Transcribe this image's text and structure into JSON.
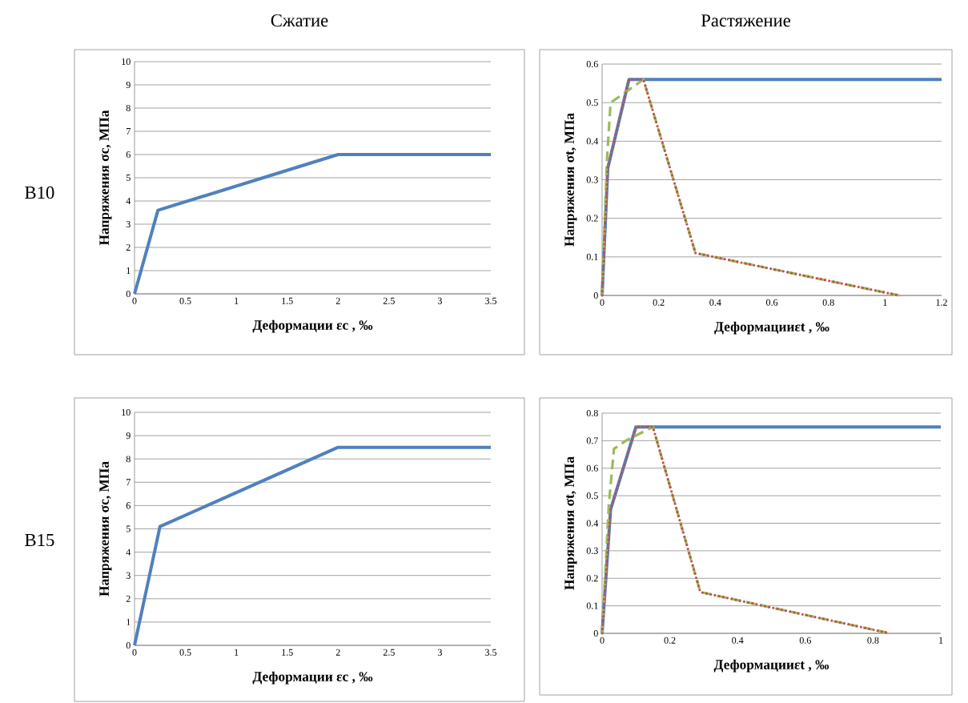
{
  "chart_data": [
    {
      "type": "line",
      "title": "Сжатие",
      "annotations": [
        "B10"
      ],
      "xlabel": "Деформации  εc , ‰",
      "ylabel": "Напряжения  σc, МПа",
      "xlim": [
        0,
        3.5
      ],
      "ylim": [
        0,
        10
      ],
      "xticks": [
        0,
        0.5,
        1,
        1.5,
        2,
        2.5,
        3,
        3.5
      ],
      "yticks": [
        0,
        1,
        2,
        3,
        4,
        5,
        6,
        7,
        8,
        9,
        10
      ],
      "grid": "y",
      "marker": "none",
      "series": [
        {
          "color": "#4f81bd",
          "line_style": "solid",
          "x": [
            0,
            0.23,
            2,
            3.5
          ],
          "values": [
            0,
            3.6,
            6,
            6
          ]
        }
      ]
    },
    {
      "type": "line",
      "title": "Растяжение",
      "xlabel": "Деформацииεt , ‰",
      "ylabel": "Напряжения  σt, МПа",
      "xlim": [
        0,
        1.2
      ],
      "ylim": [
        0,
        0.6
      ],
      "xticks": [
        0,
        0.2,
        0.4,
        0.6,
        0.8,
        1,
        1.2
      ],
      "yticks": [
        0,
        0.1,
        0.2,
        0.3,
        0.4,
        0.5,
        0.6
      ],
      "grid": "y",
      "marker": "none",
      "series": [
        {
          "color": "#4f81bd",
          "line_style": "solid",
          "x": [
            0,
            0.02,
            0.095,
            1.2
          ],
          "values": [
            0,
            0.33,
            0.56,
            0.56
          ]
        },
        {
          "color": "#9bbb59",
          "line_style": "dashed",
          "x": [
            0,
            0.017,
            0.03,
            0.05,
            0.146,
            0.33,
            1.05
          ],
          "values": [
            0,
            0.35,
            0.5,
            0.51,
            0.56,
            0.11,
            0
          ]
        },
        {
          "color": "#c0504d",
          "line_style": "dotted",
          "x": [
            0,
            0.02,
            0.095,
            0.146,
            0.33,
            1.05
          ],
          "values": [
            0,
            0.33,
            0.56,
            0.56,
            0.11,
            0
          ]
        }
      ]
    },
    {
      "type": "line",
      "annotations": [
        "B15"
      ],
      "xlabel": "Деформации  εc , ‰",
      "ylabel": "Напряжения  σc, МПа",
      "xlim": [
        0,
        3.5
      ],
      "ylim": [
        0,
        10
      ],
      "xticks": [
        0,
        0.5,
        1,
        1.5,
        2,
        2.5,
        3,
        3.5
      ],
      "yticks": [
        0,
        1,
        2,
        3,
        4,
        5,
        6,
        7,
        8,
        9,
        10
      ],
      "grid": "y",
      "marker": "none",
      "series": [
        {
          "color": "#4f81bd",
          "line_style": "solid",
          "x": [
            0,
            0.25,
            2,
            3.5
          ],
          "values": [
            0,
            5.1,
            8.5,
            8.5
          ]
        }
      ]
    },
    {
      "type": "line",
      "xlabel": "Деформацииεt , ‰",
      "ylabel": "Напряжения  σt, МПа",
      "xlim": [
        0,
        1
      ],
      "ylim": [
        0,
        0.8
      ],
      "xticks": [
        0,
        0.2,
        0.4,
        0.6,
        0.8,
        1
      ],
      "yticks": [
        0,
        0.1,
        0.2,
        0.3,
        0.4,
        0.5,
        0.6,
        0.7,
        0.8
      ],
      "grid": "y",
      "marker": "none",
      "series": [
        {
          "color": "#4f81bd",
          "line_style": "solid",
          "x": [
            0,
            0.025,
            0.1,
            1
          ],
          "values": [
            0,
            0.45,
            0.75,
            0.75
          ]
        },
        {
          "color": "#9bbb59",
          "line_style": "dashed",
          "x": [
            0,
            0.02,
            0.035,
            0.07,
            0.15,
            0.29,
            0.85
          ],
          "values": [
            0,
            0.47,
            0.67,
            0.7,
            0.75,
            0.15,
            0
          ]
        },
        {
          "color": "#c0504d",
          "line_style": "dotted",
          "x": [
            0,
            0.025,
            0.1,
            0.15,
            0.29,
            0.85
          ],
          "values": [
            0,
            0.45,
            0.75,
            0.75,
            0.15,
            0
          ]
        }
      ]
    }
  ]
}
